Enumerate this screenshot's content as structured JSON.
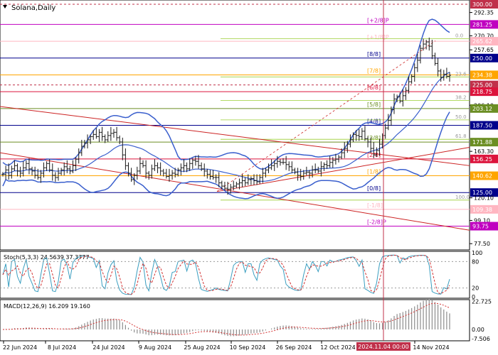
{
  "title": "Solana,Daily",
  "indicators": {
    "stoch": {
      "label": "Stoch(5,3,3) 24.5639 37.3777",
      "k_color": "#3a9ec0",
      "d_color": "#d23232"
    },
    "macd": {
      "label": "MACD(12,26,9) 16.209 19.160",
      "hist_color": "#8c8c8c",
      "signal_color": "#d23232"
    }
  },
  "colors": {
    "price_bars": "#1a1a1a",
    "bollinger": "#3a5fcd",
    "trendline": "#cc2222",
    "murrey": {
      "m28": "#c000c0",
      "p18": "#ffb6c1",
      "l88": "#00008b",
      "l78": "#ffa500",
      "l68": "#dc143c",
      "l58": "#6b8e23",
      "l48": "#00008b",
      "l28": "#dc143c",
      "l18": "#ffa500",
      "l08": "#00008b",
      "n18": "#ffb6c1",
      "n28": "#c000c0"
    },
    "fib": "#9acd32"
  },
  "chart_data": [
    {
      "type": "line",
      "name": "price",
      "ylim": [
        73.0,
        300.0
      ],
      "price_scale_labels": [
        "300.00",
        "292.35",
        "281.25",
        "270.70",
        "265.62",
        "257.65",
        "250.00",
        "234.38",
        "225.00",
        "218.75",
        "206.10",
        "203.12",
        "187.50",
        "171.88",
        "163.30",
        "156.25",
        "140.62",
        "125.00",
        "120.10",
        "109.38",
        "99.10",
        "93.75",
        "77.50"
      ],
      "x_labels": [
        "22 Jun 2024",
        "8 Jul 2024",
        "24 Jul 2024",
        "9 Aug 2024",
        "25 Aug 2024",
        "10 Sep 2024",
        "26 Sep 2024",
        "12 Oct 2024",
        "2024.11.04 00:00",
        "14 Nov 2024"
      ],
      "cursor_label": "2024.11.04 00:00",
      "murrey_lines": [
        {
          "label": "[+2/8]P",
          "price": 281.25,
          "price_label": "281.25"
        },
        {
          "label": "[+1/8]P",
          "price": 265.62,
          "price_label": "265.62"
        },
        {
          "label": "[8/8]",
          "price": 250.0,
          "price_label": "250.00"
        },
        {
          "label": "[7/8]",
          "price": 234.38,
          "price_label": "234.38"
        },
        {
          "label": "[6/8]",
          "price": 218.75,
          "price_label": "218.75"
        },
        {
          "label": "[5/8]",
          "price": 203.12,
          "price_label": "203.12"
        },
        {
          "label": "[4/8]",
          "price": 187.5,
          "price_label": "187.50"
        },
        {
          "label": "[3/8]",
          "price": 171.88,
          "price_label": "171.88"
        },
        {
          "label": "[2/8]",
          "price": 156.25,
          "price_label": "156.25"
        },
        {
          "label": "[1/8]",
          "price": 140.62,
          "price_label": "140.62"
        },
        {
          "label": "[0/8]",
          "price": 125.0,
          "price_label": "125.00"
        },
        {
          "label": "[-1/8]",
          "price": 109.38,
          "price_label": "109.38"
        },
        {
          "label": "[-2/8]P",
          "price": 93.75,
          "price_label": "93.75"
        }
      ],
      "fib_levels": [
        {
          "label": "0.0",
          "price": 268.0
        },
        {
          "label": "23.6",
          "price": 232.5
        },
        {
          "label": "38.2",
          "price": 210.5
        },
        {
          "label": "50.0",
          "price": 192.5
        },
        {
          "label": "61.8",
          "price": 174.5
        },
        {
          "label": "100.0",
          "price": 118.0
        }
      ],
      "horizontal_levels": [
        {
          "price": 300.0,
          "price_label": "300.00"
        },
        {
          "price": 225.0,
          "price_label": "225.00"
        }
      ],
      "close": [
        142,
        146,
        141,
        147,
        150,
        145,
        143,
        148,
        152,
        147,
        145,
        141,
        139,
        143,
        148,
        152,
        146,
        141,
        139,
        143,
        146,
        149,
        147,
        145,
        150,
        156,
        162,
        168,
        171,
        174,
        177,
        179,
        177,
        181,
        177,
        174,
        178,
        180,
        181,
        176,
        172,
        160,
        150,
        143,
        137,
        141,
        145,
        152,
        150,
        143,
        141,
        147,
        150,
        148,
        145,
        143,
        140,
        141,
        143,
        142,
        146,
        148,
        150,
        147,
        152,
        155,
        154,
        150,
        147,
        145,
        142,
        140,
        139,
        139,
        134,
        131,
        129,
        128,
        130,
        131,
        133,
        134,
        136,
        134,
        137,
        138,
        136,
        135,
        139,
        143,
        146,
        148,
        150,
        152,
        154,
        153,
        153,
        151,
        149,
        146,
        144,
        141,
        140,
        143,
        144,
        143,
        146,
        146,
        145,
        149,
        151,
        150,
        153,
        155,
        156,
        158,
        162,
        166,
        170,
        174,
        179,
        178,
        177,
        182,
        175,
        172,
        166,
        160,
        164,
        170,
        178,
        185,
        192,
        202,
        212,
        214,
        210,
        215,
        220,
        228,
        233,
        241,
        248,
        259,
        263,
        265,
        261,
        252,
        245,
        238,
        232,
        235,
        233,
        234
      ]
    },
    {
      "type": "line",
      "name": "stochastic",
      "ylim": [
        0,
        100
      ],
      "price_scale_labels": [
        "100",
        "80",
        "20",
        "0"
      ]
    },
    {
      "type": "bar",
      "name": "macd",
      "ylim": [
        -8,
        23
      ],
      "price_scale_labels": [
        "22.725",
        "0.00",
        "-7.506"
      ]
    }
  ]
}
